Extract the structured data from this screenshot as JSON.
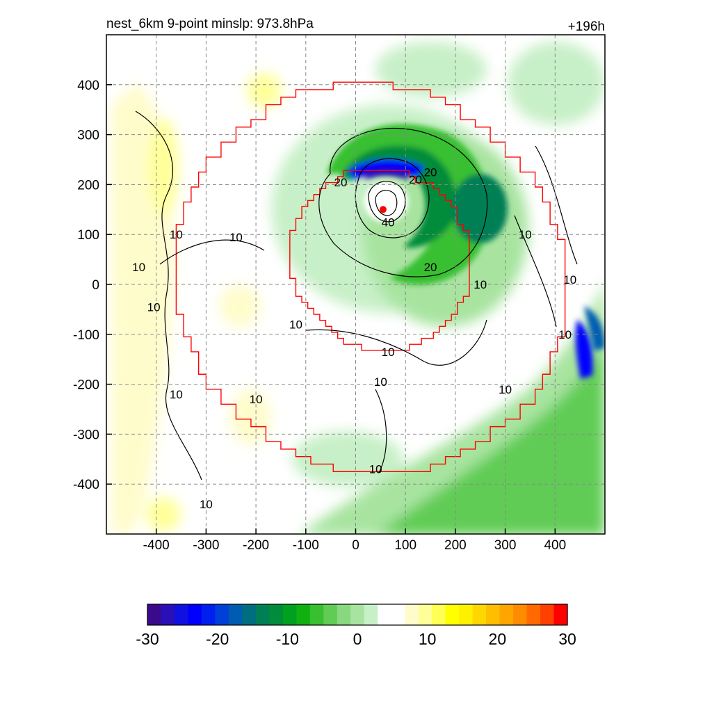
{
  "chart_data": {
    "type": "contour",
    "title_left": "nest_6km  9-point minslp: 973.8hPa",
    "title_right": "+196h",
    "x_ticks": [
      -400,
      -300,
      -200,
      -100,
      0,
      100,
      200,
      300,
      400
    ],
    "y_ticks": [
      400,
      300,
      200,
      100,
      0,
      -100,
      -200,
      -300,
      -400
    ],
    "xlim": [
      -500,
      500
    ],
    "ylim": [
      -500,
      500
    ],
    "grid": true,
    "colorbar": {
      "ticks": [
        -30,
        -20,
        -10,
        0,
        10,
        20,
        30
      ],
      "range": [
        -30,
        30
      ],
      "colors": [
        "#3b0a8c",
        "#2a10b8",
        "#1010e0",
        "#0000ff",
        "#0020f0",
        "#0040d8",
        "#005cb0",
        "#006e80",
        "#007f55",
        "#008c3a",
        "#00a020",
        "#10b010",
        "#38c030",
        "#60cc55",
        "#88d880",
        "#a8e4a0",
        "#c8f0c8",
        "#ffffff",
        "#ffffff",
        "#fffccc",
        "#ffff99",
        "#ffff55",
        "#ffff00",
        "#fff000",
        "#ffd700",
        "#ffbe00",
        "#ffa500",
        "#ff8c00",
        "#ff6a00",
        "#ff4000",
        "#ff0000"
      ]
    },
    "contour_labels": [
      {
        "text": "10",
        "x": -360,
        "y": 100
      },
      {
        "text": "10",
        "x": -240,
        "y": 95
      },
      {
        "text": "10",
        "x": -435,
        "y": 35
      },
      {
        "text": "10",
        "x": -405,
        "y": -45
      },
      {
        "text": "10",
        "x": -360,
        "y": -220
      },
      {
        "text": "10",
        "x": -200,
        "y": -230
      },
      {
        "text": "10",
        "x": -300,
        "y": -440
      },
      {
        "text": "10",
        "x": -120,
        "y": -80
      },
      {
        "text": "10",
        "x": 65,
        "y": -135
      },
      {
        "text": "10",
        "x": 50,
        "y": -195
      },
      {
        "text": "10",
        "x": 40,
        "y": -370
      },
      {
        "text": "10",
        "x": 340,
        "y": 100
      },
      {
        "text": "10",
        "x": 250,
        "y": 0
      },
      {
        "text": "10",
        "x": 430,
        "y": 10
      },
      {
        "text": "10",
        "x": 420,
        "y": -100
      },
      {
        "text": "10",
        "x": 300,
        "y": -210
      },
      {
        "text": "20",
        "x": -30,
        "y": 205
      },
      {
        "text": "20",
        "x": 150,
        "y": 225
      },
      {
        "text": "20",
        "x": 120,
        "y": 210
      },
      {
        "text": "20",
        "x": 150,
        "y": 35
      },
      {
        "text": "40",
        "x": 65,
        "y": 125
      }
    ],
    "min_slp_center": {
      "x": 55,
      "y": 150
    }
  }
}
